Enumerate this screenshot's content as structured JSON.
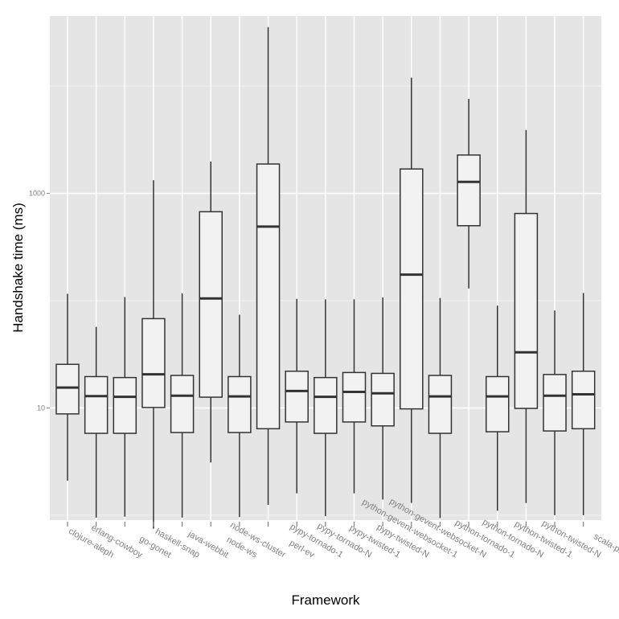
{
  "chart_data": {
    "type": "boxplot",
    "title": "",
    "xlabel": "Framework",
    "ylabel": "Handshake time (ms)",
    "y_scale": "log10",
    "ylim": [
      0.9,
      45000
    ],
    "y_ticks": [
      {
        "value": 10,
        "label": "10"
      },
      {
        "value": 1000,
        "label": "1000"
      }
    ],
    "grid": true,
    "categories": [
      "clojure-aleph",
      "erlang-cowboy",
      "go-gonet",
      "haskell-snap",
      "java-webbit",
      "node-ws",
      "node-ws-cluster",
      "perl-ev",
      "pypy-tornado-1",
      "pypy-tornado-N",
      "pypy-twisted-1",
      "pypy-twisted-N",
      "python-gevent-websocket-1",
      "python-gevent-websocket-N",
      "python-tornado-1",
      "python-tornado-N",
      "python-twisted-1",
      "python-twisted-N",
      "scala-play"
    ],
    "boxes": [
      {
        "min": 2.1,
        "q1": 8.8,
        "median": 15.5,
        "q3": 25.5,
        "max": 116
      },
      {
        "min": 0.95,
        "q1": 5.8,
        "median": 12.9,
        "q3": 19.6,
        "max": 57
      },
      {
        "min": 0.97,
        "q1": 5.8,
        "median": 12.7,
        "q3": 19.2,
        "max": 108
      },
      {
        "min": 0.75,
        "q1": 10.1,
        "median": 20.6,
        "q3": 68,
        "max": 1330
      },
      {
        "min": 0.95,
        "q1": 5.9,
        "median": 13.0,
        "q3": 20.1,
        "max": 117
      },
      {
        "min": 3.1,
        "q1": 12.6,
        "median": 105,
        "q3": 675,
        "max": 1980
      },
      {
        "min": 0.96,
        "q1": 5.9,
        "median": 12.8,
        "q3": 19.6,
        "max": 74
      },
      {
        "min": 1.25,
        "q1": 6.4,
        "median": 490,
        "q3": 1880,
        "max": 35500
      },
      {
        "min": 1.6,
        "q1": 7.4,
        "median": 14.4,
        "q3": 22,
        "max": 104
      },
      {
        "min": 0.98,
        "q1": 5.8,
        "median": 12.7,
        "q3": 19.2,
        "max": 103
      },
      {
        "min": 1.6,
        "q1": 7.4,
        "median": 14.1,
        "q3": 21.4,
        "max": 103
      },
      {
        "min": 1.4,
        "q1": 6.8,
        "median": 13.7,
        "q3": 21.0,
        "max": 107
      },
      {
        "min": 1.3,
        "q1": 9.8,
        "median": 175,
        "q3": 1690,
        "max": 12000
      },
      {
        "min": 0.94,
        "q1": 5.8,
        "median": 12.8,
        "q3": 20.1,
        "max": 106
      },
      {
        "min": 130,
        "q1": 500,
        "median": 1280,
        "q3": 2280,
        "max": 7600
      },
      {
        "min": 1.1,
        "q1": 6.0,
        "median": 12.8,
        "q3": 19.6,
        "max": 90
      },
      {
        "min": 1.3,
        "q1": 9.9,
        "median": 33,
        "q3": 650,
        "max": 3900
      },
      {
        "min": 1.0,
        "q1": 6.1,
        "median": 13.0,
        "q3": 20.5,
        "max": 81
      },
      {
        "min": 1.0,
        "q1": 6.4,
        "median": 13.4,
        "q3": 22.0,
        "max": 118
      }
    ]
  },
  "colors": {
    "panel_bg": "#e5e5e5",
    "grid_major": "#ffffff",
    "grid_minor": "#f2f2f2",
    "box_fill": "#f2f2f2",
    "box_stroke": "#333333",
    "tick_label": "#808080",
    "axis_title": "#000000"
  }
}
